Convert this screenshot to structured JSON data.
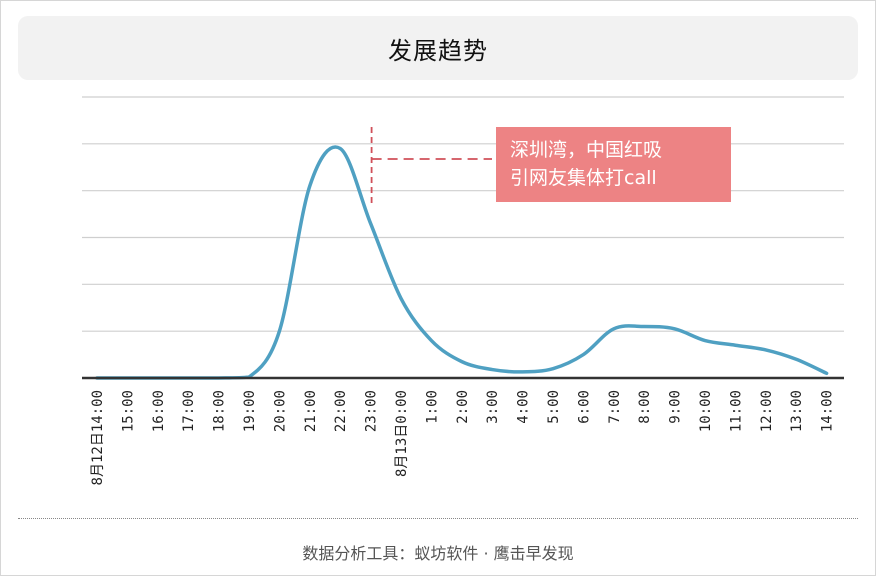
{
  "header": {
    "title": "发展趋势"
  },
  "footer": {
    "source": "数据分析工具：蚁坊软件 · 鹰击早发现"
  },
  "colors": {
    "line": "#4fa0c2",
    "annotation_bg": "#ed8384",
    "annotation_marker": "#d0505a",
    "grid": "#cfcfcf",
    "axis": "#333333"
  },
  "chart_data": {
    "type": "line",
    "title": "",
    "xlabel": "",
    "ylabel": "",
    "grid": true,
    "y_axis_labels_shown": false,
    "x": [
      "8月12日14:00",
      "15:00",
      "16:00",
      "17:00",
      "18:00",
      "19:00",
      "20:00",
      "21:00",
      "22:00",
      "23:00",
      "8月13日0:00",
      "1:00",
      "2:00",
      "3:00",
      "4:00",
      "5:00",
      "6:00",
      "7:00",
      "8:00",
      "9:00",
      "10:00",
      "11:00",
      "12:00",
      "13:00",
      "14:00"
    ],
    "series": [
      {
        "values": [
          0,
          0,
          0,
          0,
          0,
          0.2,
          10,
          41,
          49,
          33,
          17,
          8,
          3.5,
          1.8,
          1.3,
          2,
          5,
          10.5,
          11,
          10.5,
          8,
          7,
          6,
          4,
          1
        ]
      }
    ],
    "ylim": [
      0,
      60
    ],
    "annotations": [
      {
        "x": "23:00",
        "text_lines": [
          "深圳湾，中国红吸",
          "引网友集体打call"
        ]
      }
    ]
  }
}
